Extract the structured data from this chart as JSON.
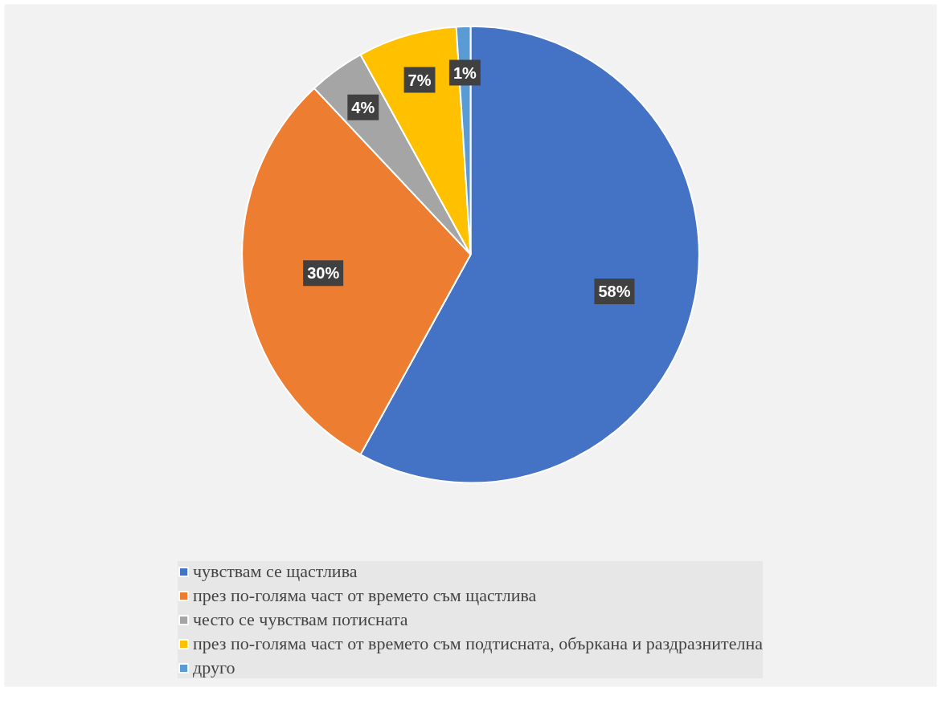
{
  "chart_data": {
    "type": "pie",
    "categories": [
      "чувствам се щастлива",
      "през по-голяма част от времето съм щастлива",
      "често се чувствам потисната",
      "през по-голяма част от времето съм подтисната, объркана и раздразнителна",
      "друго"
    ],
    "values": [
      58,
      30,
      4,
      7,
      1
    ],
    "value_labels": [
      "58%",
      "30%",
      "4%",
      "7%",
      "1%"
    ],
    "colors": [
      "#4472c4",
      "#ed7d31",
      "#a5a5a5",
      "#ffc000",
      "#5b9bd5"
    ],
    "legend": "bottom"
  }
}
